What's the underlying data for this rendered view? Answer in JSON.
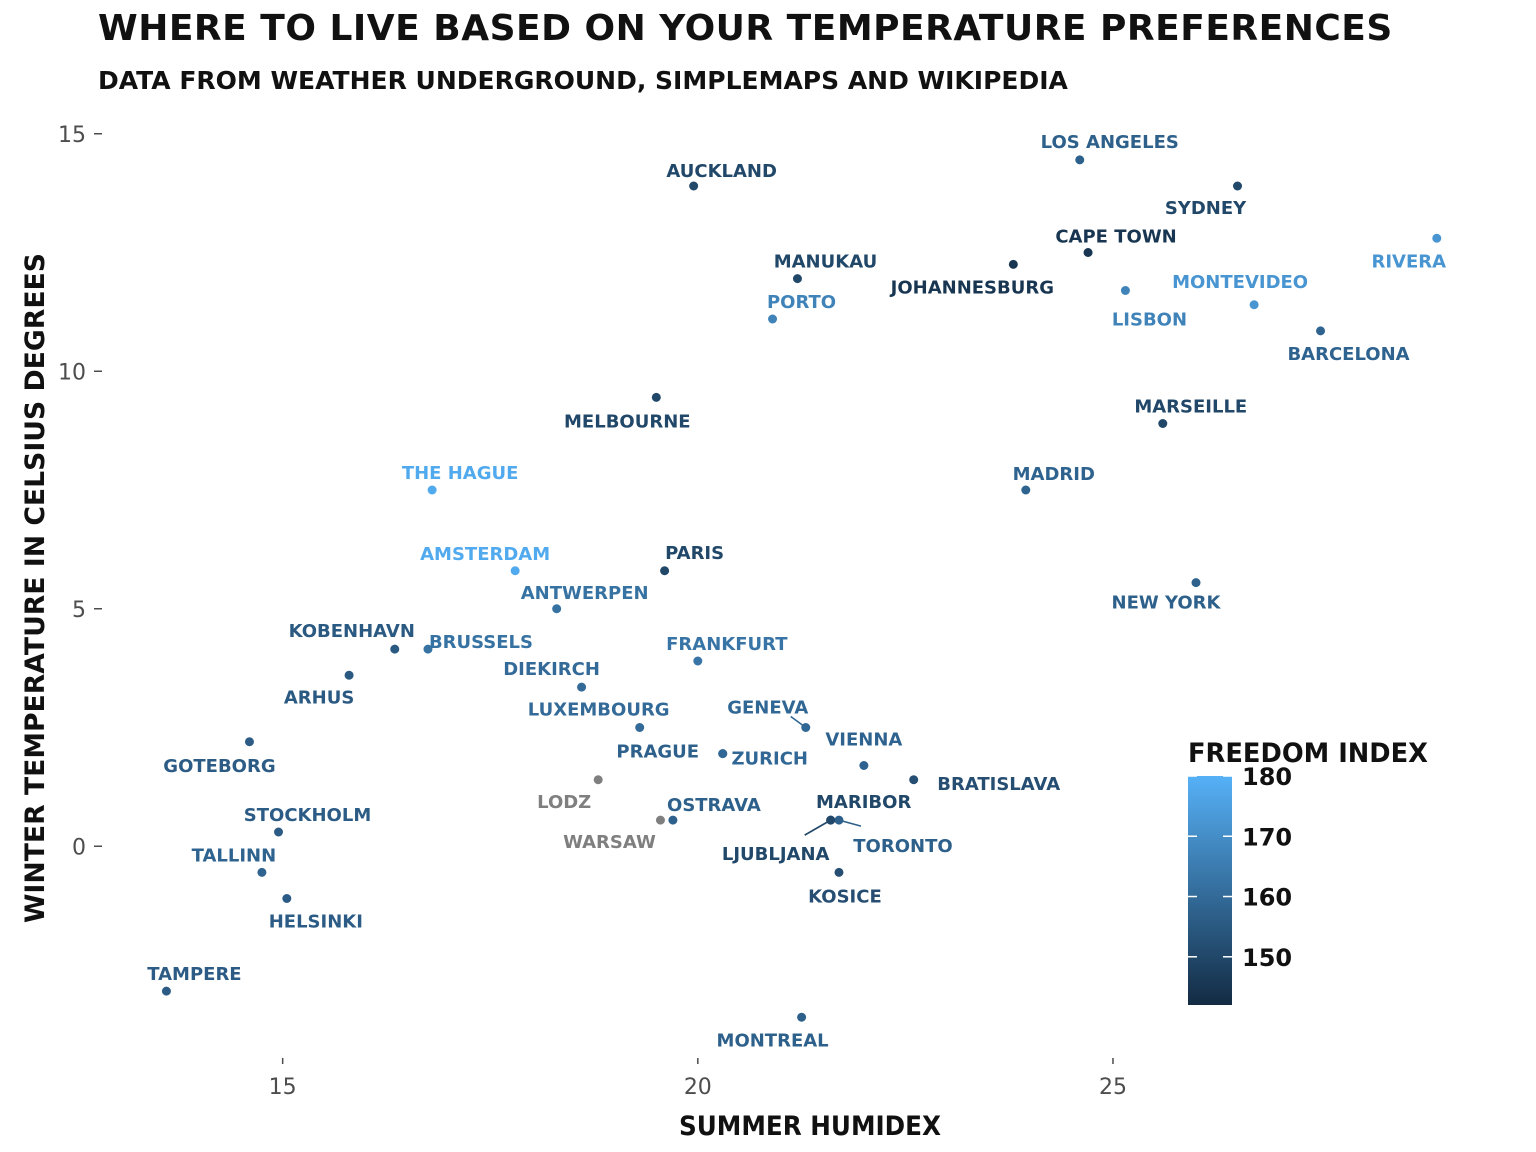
{
  "title": "Where to live based on your temperature preferences",
  "subtitle": "Data from weather underground, simplemaps and wikipedia",
  "chart_data": {
    "type": "scatter",
    "title": "Where to live based on your temperature preferences",
    "subtitle": "Data from weather underground, simplemaps and wikipedia",
    "xlabel": "Summer humidex",
    "ylabel": "Winter temperature in Celsius degrees",
    "xlim": [
      12.8,
      29.3
    ],
    "ylim": [
      -4.5,
      15.5
    ],
    "xticks": [
      15,
      20,
      25
    ],
    "yticks": [
      0,
      5,
      10,
      15
    ],
    "grid": false,
    "legend": {
      "title": "Freedom index",
      "placement": "bottom-right",
      "range": [
        142,
        180
      ],
      "ticks": [
        150,
        160,
        170,
        180
      ],
      "low_color": "#132b43",
      "high_color": "#56b1f7",
      "na_color": "#7f7f7f"
    },
    "points": [
      {
        "city": "Auckland",
        "x": 19.95,
        "y": 13.9,
        "freedom": 150
      },
      {
        "city": "Los Angeles",
        "x": 24.6,
        "y": 14.45,
        "freedom": 157
      },
      {
        "city": "Sydney",
        "x": 26.5,
        "y": 13.9,
        "freedom": 150
      },
      {
        "city": "Cape Town",
        "x": 24.7,
        "y": 12.5,
        "freedom": 145
      },
      {
        "city": "Manukau",
        "x": 21.2,
        "y": 11.95,
        "freedom": 150
      },
      {
        "city": "Johannesburg",
        "x": 23.8,
        "y": 12.25,
        "freedom": 145
      },
      {
        "city": "Rivera",
        "x": 28.9,
        "y": 12.8,
        "freedom": 172
      },
      {
        "city": "Montevideo",
        "x": 26.7,
        "y": 11.4,
        "freedom": 172
      },
      {
        "city": "Lisbon",
        "x": 25.15,
        "y": 11.7,
        "freedom": 167
      },
      {
        "city": "Porto",
        "x": 20.9,
        "y": 11.1,
        "freedom": 167
      },
      {
        "city": "Barcelona",
        "x": 27.5,
        "y": 10.85,
        "freedom": 158
      },
      {
        "city": "Melbourne",
        "x": 19.5,
        "y": 9.45,
        "freedom": 150
      },
      {
        "city": "Marseille",
        "x": 25.6,
        "y": 8.9,
        "freedom": 150
      },
      {
        "city": "The Hague",
        "x": 16.8,
        "y": 7.5,
        "freedom": 178
      },
      {
        "city": "Madrid",
        "x": 23.95,
        "y": 7.5,
        "freedom": 158
      },
      {
        "city": "Amsterdam",
        "x": 17.8,
        "y": 5.8,
        "freedom": 178
      },
      {
        "city": "Paris",
        "x": 19.6,
        "y": 5.8,
        "freedom": 150
      },
      {
        "city": "New York",
        "x": 26.0,
        "y": 5.55,
        "freedom": 157
      },
      {
        "city": "Antwerpen",
        "x": 18.3,
        "y": 5.0,
        "freedom": 162
      },
      {
        "city": "Kobenhavn",
        "x": 16.35,
        "y": 4.15,
        "freedom": 155
      },
      {
        "city": "Brussels",
        "x": 16.75,
        "y": 4.15,
        "freedom": 162
      },
      {
        "city": "Frankfurt",
        "x": 20.0,
        "y": 3.9,
        "freedom": 163
      },
      {
        "city": "Arhus",
        "x": 15.8,
        "y": 3.6,
        "freedom": 155
      },
      {
        "city": "Diekirch",
        "x": 18.6,
        "y": 3.35,
        "freedom": 160
      },
      {
        "city": "Luxembourg",
        "x": 19.3,
        "y": 2.5,
        "freedom": 160
      },
      {
        "city": "Geneva",
        "x": 21.3,
        "y": 2.5,
        "freedom": 159
      },
      {
        "city": "Goteborg",
        "x": 14.6,
        "y": 2.2,
        "freedom": 156
      },
      {
        "city": "Prague",
        "x": 20.3,
        "y": 1.95,
        "freedom": 157
      },
      {
        "city": "Zurich",
        "x": 20.3,
        "y": 1.95,
        "freedom": 159
      },
      {
        "city": "Vienna",
        "x": 22.0,
        "y": 1.7,
        "freedom": 158
      },
      {
        "city": "Bratislava",
        "x": 22.6,
        "y": 1.4,
        "freedom": 152
      },
      {
        "city": "Lodz",
        "x": 18.8,
        "y": 1.4,
        "freedom": null
      },
      {
        "city": "Ostrava",
        "x": 19.7,
        "y": 0.55,
        "freedom": 157
      },
      {
        "city": "Warsaw",
        "x": 19.55,
        "y": 0.55,
        "freedom": null
      },
      {
        "city": "Maribor",
        "x": 21.6,
        "y": 0.55,
        "freedom": 150
      },
      {
        "city": "Toronto",
        "x": 21.7,
        "y": 0.55,
        "freedom": 157
      },
      {
        "city": "Ljubljana",
        "x": 21.6,
        "y": 0.55,
        "freedom": 150
      },
      {
        "city": "Stockholm",
        "x": 14.95,
        "y": 0.3,
        "freedom": 156
      },
      {
        "city": "Tallinn",
        "x": 14.75,
        "y": -0.55,
        "freedom": 158
      },
      {
        "city": "Kosice",
        "x": 21.7,
        "y": -0.55,
        "freedom": 152
      },
      {
        "city": "Helsinki",
        "x": 15.05,
        "y": -1.1,
        "freedom": 156
      },
      {
        "city": "Tampere",
        "x": 13.6,
        "y": -3.05,
        "freedom": 156
      },
      {
        "city": "Montreal",
        "x": 21.25,
        "y": -3.6,
        "freedom": 157
      }
    ]
  }
}
